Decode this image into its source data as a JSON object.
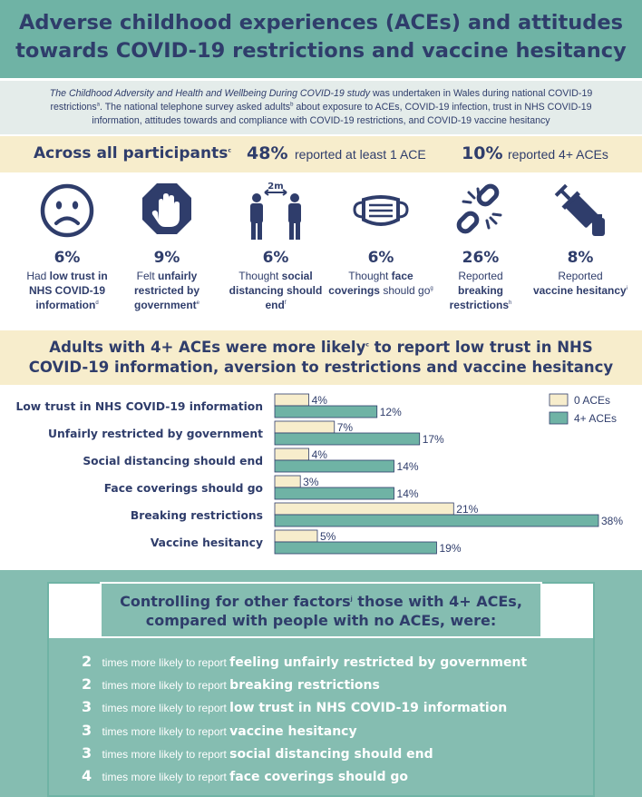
{
  "header": {
    "title_line1": "Adverse childhood experiences (ACEs) and attitudes",
    "title_line2": "towards COVID-19 restrictions and vaccine hesitancy"
  },
  "intro": {
    "study_name": "The Childhood Adversity and Health and Wellbeing During COVID-19 study",
    "text1": " was undertaken in Wales during national COVID-19 restrictions",
    "sup_a": "a",
    "text2": ". The national telephone survey asked adults",
    "sup_b": "b",
    "text3": " about exposure to ACEs, COVID-19 infection, trust in NHS COVID-19 information, attitudes towards and compliance with COVID-19 restrictions, and COVID-19 vaccine hesitancy"
  },
  "summary": {
    "label": "Across all participants",
    "sup": "c",
    "any_pct": "48%",
    "any_text": "reported at least 1 ACE",
    "four_pct": "10%",
    "four_text": "reported 4+ ACEs"
  },
  "stats": [
    {
      "icon": "sad-face-icon",
      "pct": "6%",
      "pre": "Had ",
      "bold": "low trust in NHS COVID-19 information",
      "post": "",
      "sup": "d"
    },
    {
      "icon": "stop-hand-icon",
      "pct": "9%",
      "pre": "Felt ",
      "bold": "unfairly restricted by government",
      "post": "",
      "sup": "e"
    },
    {
      "icon": "social-distance-icon",
      "pct": "6%",
      "pre": "Thought ",
      "bold": "social distancing should end",
      "post": "",
      "sup": "f",
      "icon_label": "2m"
    },
    {
      "icon": "face-mask-icon",
      "pct": "6%",
      "pre": "Thought ",
      "bold": "face coverings",
      "post": " should go",
      "sup": "g"
    },
    {
      "icon": "broken-chain-icon",
      "pct": "26%",
      "pre": "Reported ",
      "bold": "breaking restrictions",
      "post": "",
      "sup": "h"
    },
    {
      "icon": "vaccine-syringe-icon",
      "pct": "8%",
      "pre": "Reported ",
      "bold": "vaccine hesitancy",
      "post": "",
      "sup": "i"
    }
  ],
  "comparison": {
    "title_line1": "Adults with 4+ ACEs were more likely",
    "sup": "c",
    "title_line1_end": " to report low trust in NHS",
    "title_line2": "COVID-19 information, aversion to restrictions and vaccine hesitancy"
  },
  "chart_data": {
    "type": "bar",
    "orientation": "horizontal",
    "categories": [
      "Low trust in NHS COVID-19 information",
      "Unfairly restricted by government",
      "Social distancing should end",
      "Face coverings should go",
      "Breaking restrictions",
      "Vaccine hesitancy"
    ],
    "series": [
      {
        "name": "0 ACEs",
        "values": [
          4,
          7,
          4,
          3,
          21,
          5
        ],
        "color": "#f7edcc"
      },
      {
        "name": "4+ ACEs",
        "values": [
          12,
          17,
          14,
          14,
          38,
          19
        ],
        "color": "#6fb3a5"
      }
    ],
    "value_suffix": "%",
    "xlim": [
      0,
      38
    ],
    "legend_position": "top-right",
    "grid": false
  },
  "controlling": {
    "title_line1": "Controlling for other factors",
    "sup": "j",
    "title_line1_end": " those with 4+ ACEs,",
    "title_line2": "compared with people with no ACEs, were:",
    "items": [
      {
        "num": "2",
        "mid": "times more likely to report ",
        "topic": "feeling unfairly restricted by government"
      },
      {
        "num": "2",
        "mid": "times more likely to report ",
        "topic": "breaking restrictions"
      },
      {
        "num": "3",
        "mid": "times more likely to report ",
        "topic": "low trust in NHS COVID-19 information"
      },
      {
        "num": "3",
        "mid": "times more likely to report ",
        "topic": "vaccine hesitancy"
      },
      {
        "num": "3",
        "mid": "times more likely to report ",
        "topic": "social distancing should end"
      },
      {
        "num": "4",
        "mid": "times more likely to report ",
        "topic": "face coverings should go"
      }
    ]
  },
  "colors": {
    "navy": "#2f3d6b",
    "teal": "#6fb3a5",
    "cream": "#f7edcc",
    "pale_teal": "#85bdb1"
  }
}
